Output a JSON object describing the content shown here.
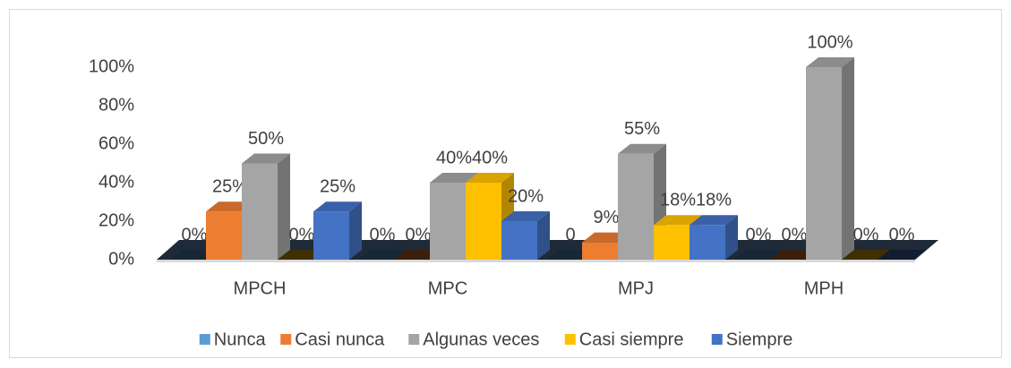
{
  "chart_data": {
    "type": "bar3d",
    "categories": [
      "MPCH",
      "MPC",
      "MPJ",
      "MPH"
    ],
    "series": [
      {
        "name": "Nunca",
        "color": "#5b9bd5",
        "values": [
          0,
          0,
          0,
          0
        ],
        "value_labels": [
          "0%",
          "0%",
          "0",
          "0%"
        ]
      },
      {
        "name": "Casi nunca",
        "color": "#ed7d31",
        "values": [
          25,
          0,
          9,
          0
        ],
        "value_labels": [
          "25%",
          "0%",
          "9%",
          "0%"
        ]
      },
      {
        "name": "Algunas veces",
        "color": "#a5a5a5",
        "values": [
          50,
          40,
          55,
          100
        ],
        "value_labels": [
          "50%",
          "40%",
          "55%",
          "100%"
        ]
      },
      {
        "name": "Casi siempre",
        "color": "#ffc000",
        "values": [
          0,
          40,
          18,
          0
        ],
        "value_labels": [
          "0%",
          "40%",
          "18%",
          "0%"
        ]
      },
      {
        "name": "Siempre",
        "color": "#4472c4",
        "values": [
          25,
          20,
          18,
          0
        ],
        "value_labels": [
          "25%",
          "20%",
          "18%",
          "0%"
        ]
      }
    ],
    "ylim": [
      0,
      100
    ],
    "yticks": [
      {
        "value": 0,
        "label": "0%"
      },
      {
        "value": 20,
        "label": "20%"
      },
      {
        "value": 40,
        "label": "40%"
      },
      {
        "value": 60,
        "label": "60%"
      },
      {
        "value": 80,
        "label": "80%"
      },
      {
        "value": 100,
        "label": "100%"
      }
    ],
    "legend": "bottom"
  }
}
